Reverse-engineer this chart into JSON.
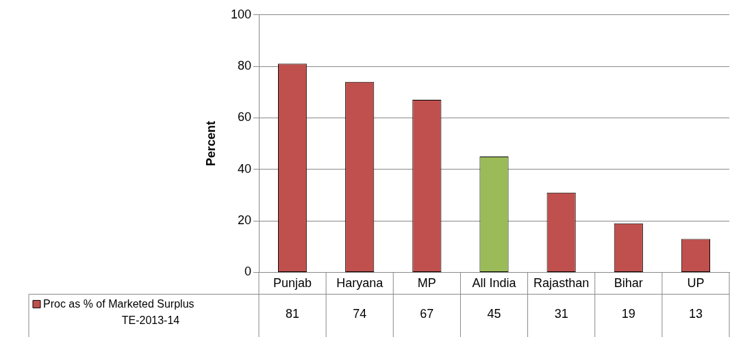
{
  "chart_data": {
    "type": "bar",
    "ylabel": "Percent",
    "categories": [
      "Punjab",
      "Haryana",
      "MP",
      "All India",
      "Rajasthan",
      "Bihar",
      "UP"
    ],
    "series": [
      {
        "name": "Proc as % of Marketed Surplus TE-2013-14",
        "color": "#c0504d",
        "colors": [
          "#c0504d",
          "#c0504d",
          "#c0504d",
          "#9bbb59",
          "#c0504d",
          "#c0504d",
          "#c0504d"
        ],
        "values": [
          81,
          74,
          67,
          45,
          31,
          19,
          13
        ]
      }
    ],
    "ylim": [
      0,
      100
    ],
    "yticks": [
      0,
      20,
      40,
      60,
      80,
      100
    ],
    "grid": "y",
    "legend": "bottom",
    "data_labels": true
  }
}
